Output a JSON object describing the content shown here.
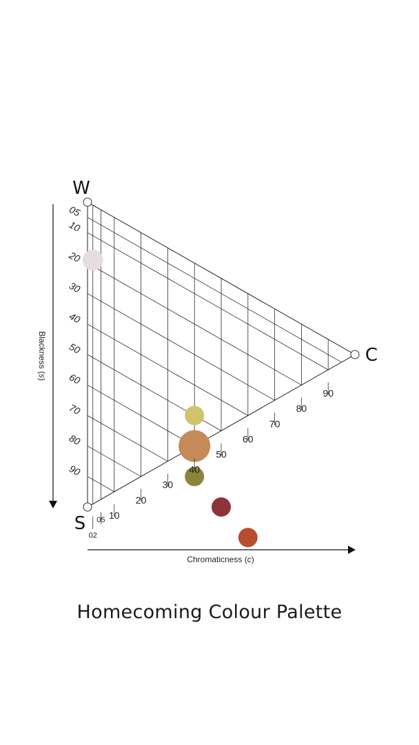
{
  "title": "Homecoming Colour Palette",
  "chart_data": {
    "type": "scatter",
    "chart_kind": "NCS colour triangle",
    "corners": {
      "white": "W",
      "chromatic": "C",
      "black": "S"
    },
    "xlabel": "Chromaticness",
    "xlabel_symbol": "c",
    "ylabel": "Blackness",
    "ylabel_symbol": "s",
    "x_ticks": [
      "02",
      "05",
      "10",
      "20",
      "30",
      "40",
      "50",
      "60",
      "70",
      "80",
      "90"
    ],
    "y_ticks": [
      "05",
      "10",
      "20",
      "30",
      "40",
      "50",
      "60",
      "70",
      "80",
      "90"
    ],
    "grid_chromaticness": [
      2,
      5,
      10,
      20,
      30,
      40,
      50,
      60,
      70,
      80,
      90
    ],
    "grid_blackness": [
      5,
      10,
      20,
      30,
      40,
      50,
      60,
      70,
      80,
      90
    ],
    "xlim": [
      0,
      100
    ],
    "ylim": [
      0,
      100
    ],
    "grid": true,
    "points": [
      {
        "blackness": 18,
        "chromaticness": 2,
        "size": "medium",
        "color": "#e6dde3"
      },
      {
        "blackness": 50,
        "chromaticness": 40,
        "size": "small",
        "color": "#cdc46c"
      },
      {
        "blackness": 60,
        "chromaticness": 40,
        "size": "large",
        "color": "#c48a57"
      },
      {
        "blackness": 70,
        "chromaticness": 40,
        "size": "small",
        "color": "#8a853b"
      },
      {
        "blackness": 75,
        "chromaticness": 50,
        "size": "small",
        "color": "#8e3338"
      },
      {
        "blackness": 80,
        "chromaticness": 60,
        "size": "small",
        "color": "#b84d2f"
      }
    ]
  }
}
